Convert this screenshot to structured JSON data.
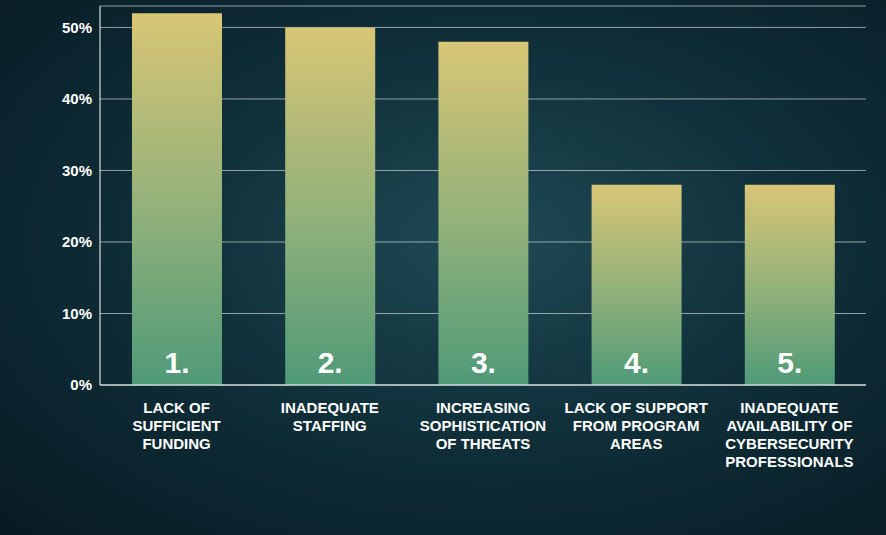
{
  "chart_data": {
    "type": "bar",
    "categories": [
      "LACK OF SUFFICIENT FUNDING",
      "INADEQUATE STAFFING",
      "INCREASING SOPHISTICATION OF THREATS",
      "LACK OF SUPPORT FROM PROGRAM AREAS",
      "INADEQUATE AVAILABILITY OF CYBERSECURITY PROFESSIONALS"
    ],
    "values": [
      52,
      50,
      48,
      28,
      28
    ],
    "bar_labels": [
      "1.",
      "2.",
      "3.",
      "4.",
      "5."
    ],
    "color": "#4f9a78",
    "ylim": [
      0,
      53
    ],
    "yticks": [
      {
        "value": 0,
        "label": "0%"
      },
      {
        "value": 10,
        "label": "10%"
      },
      {
        "value": 20,
        "label": "20%"
      },
      {
        "value": 30,
        "label": "30%"
      },
      {
        "value": 40,
        "label": "40%"
      },
      {
        "value": 50,
        "label": "50%"
      }
    ],
    "grid": true
  }
}
